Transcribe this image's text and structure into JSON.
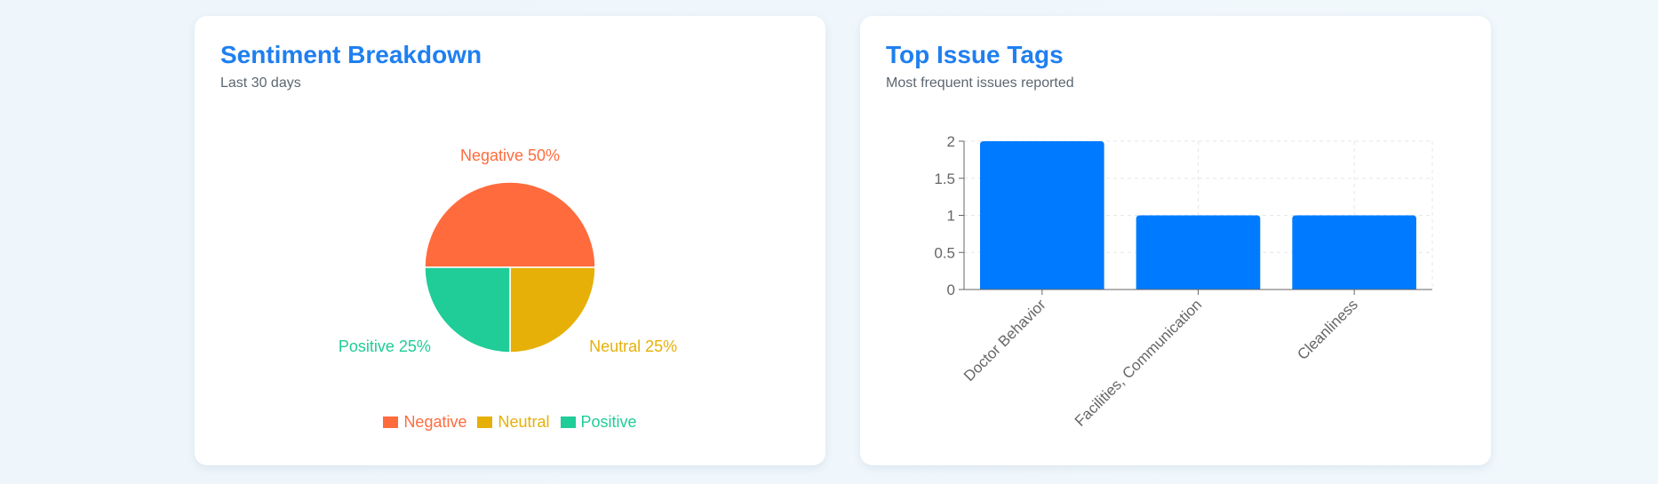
{
  "sentiment_card": {
    "title": "Sentiment Breakdown",
    "subtitle": "Last 30 days"
  },
  "tags_card": {
    "title": "Top Issue Tags",
    "subtitle": "Most frequent issues reported"
  },
  "chart_data": [
    {
      "type": "pie",
      "slices": [
        {
          "name": "Negative",
          "value": 50,
          "label": "Negative 50%",
          "color": "#ff6b3d"
        },
        {
          "name": "Neutral",
          "value": 25,
          "label": "Neutral 25%",
          "color": "#e6b008"
        },
        {
          "name": "Positive",
          "value": 25,
          "label": "Positive 25%",
          "color": "#20cc97"
        }
      ],
      "legend_placement": "bottom"
    },
    {
      "type": "bar",
      "categories": [
        "Doctor Behavior",
        "Facilities, Communication",
        "Cleanliness"
      ],
      "values": [
        2,
        1,
        1
      ],
      "ylim": [
        0,
        2
      ],
      "yticks": [
        "0",
        "0.5",
        "1",
        "1.5",
        "2"
      ],
      "grid": true,
      "bar_color": "#007bff"
    }
  ]
}
